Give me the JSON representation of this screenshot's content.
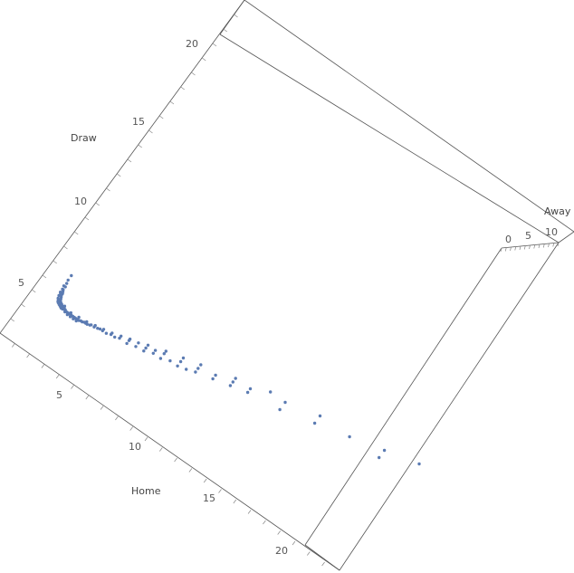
{
  "chart_data": {
    "type": "scatter3d",
    "title": "",
    "axes": {
      "home": {
        "label": "Home",
        "ticks": [
          "5",
          "10",
          "15",
          "20"
        ]
      },
      "draw": {
        "label": "Draw",
        "ticks": [
          "5",
          "10",
          "15",
          "20"
        ]
      },
      "away": {
        "label": "Away",
        "ticks": [
          "0",
          "5",
          "10"
        ]
      }
    },
    "marker_color": "#5b7bb2",
    "box_color": "#555555",
    "points_home_draw": [
      [
        1.3,
        4.9
      ],
      [
        1.3,
        4.6
      ],
      [
        1.35,
        4.4
      ],
      [
        1.4,
        4.2
      ],
      [
        1.4,
        4.0
      ],
      [
        1.45,
        3.9
      ],
      [
        1.5,
        3.8
      ],
      [
        1.5,
        3.7
      ],
      [
        1.55,
        3.6
      ],
      [
        1.6,
        3.5
      ],
      [
        1.6,
        3.45
      ],
      [
        1.65,
        3.4
      ],
      [
        1.7,
        3.35
      ],
      [
        1.75,
        3.3
      ],
      [
        1.8,
        3.3
      ],
      [
        1.85,
        3.25
      ],
      [
        1.9,
        3.2
      ],
      [
        1.95,
        3.2
      ],
      [
        2.0,
        3.2
      ],
      [
        2.05,
        3.2
      ],
      [
        2.1,
        3.15
      ],
      [
        2.15,
        3.15
      ],
      [
        2.2,
        3.1
      ],
      [
        2.3,
        3.1
      ],
      [
        2.4,
        3.1
      ],
      [
        2.5,
        3.1
      ],
      [
        2.6,
        3.1
      ],
      [
        2.7,
        3.1
      ],
      [
        2.8,
        3.1
      ],
      [
        2.9,
        3.1
      ],
      [
        3.0,
        3.1
      ],
      [
        3.1,
        3.1
      ],
      [
        3.2,
        3.15
      ],
      [
        3.3,
        3.15
      ],
      [
        3.4,
        3.2
      ],
      [
        3.5,
        3.2
      ],
      [
        3.6,
        3.2
      ],
      [
        3.75,
        3.25
      ],
      [
        3.8,
        3.3
      ],
      [
        4.0,
        3.3
      ],
      [
        4.2,
        3.35
      ],
      [
        4.33,
        3.4
      ],
      [
        4.5,
        3.4
      ],
      [
        4.75,
        3.4
      ],
      [
        5.0,
        3.5
      ],
      [
        5.25,
        3.5
      ],
      [
        5.5,
        3.6
      ],
      [
        5.5,
        3.75
      ],
      [
        6.0,
        3.6
      ],
      [
        6.0,
        3.8
      ],
      [
        6.5,
        3.75
      ],
      [
        6.5,
        4.0
      ],
      [
        7.0,
        3.8
      ],
      [
        7.0,
        4.0
      ],
      [
        7.5,
        4.0
      ],
      [
        7.5,
        4.2
      ],
      [
        8.0,
        4.0
      ],
      [
        8.0,
        4.33
      ],
      [
        8.5,
        4.2
      ],
      [
        9.0,
        4.2
      ],
      [
        9.0,
        4.5
      ],
      [
        9.5,
        4.33
      ],
      [
        10.0,
        4.5
      ],
      [
        10.0,
        4.75
      ],
      [
        11.0,
        4.75
      ],
      [
        11.0,
        5.0
      ],
      [
        12.0,
        5.0
      ],
      [
        12.0,
        5.25
      ],
      [
        13.0,
        5.5
      ],
      [
        13.0,
        5.25
      ],
      [
        15.0,
        5.5
      ],
      [
        15.0,
        6.0
      ],
      [
        17.0,
        6.0
      ],
      [
        17.0,
        6.5
      ],
      [
        19.0,
        6.5
      ],
      [
        21.0,
        7.0
      ],
      [
        21.0,
        6.5
      ],
      [
        23.0,
        7.5
      ],
      [
        2.0,
        3.3
      ],
      [
        2.5,
        3.2
      ],
      [
        3.0,
        3.25
      ],
      [
        3.5,
        3.3
      ],
      [
        4.0,
        3.4
      ],
      [
        4.5,
        3.5
      ],
      [
        5.0,
        3.6
      ],
      [
        6.0,
        3.9
      ],
      [
        7.0,
        4.2
      ],
      [
        8.0,
        4.5
      ],
      [
        9.0,
        4.75
      ],
      [
        10.0,
        5.0
      ],
      [
        12.0,
        5.5
      ],
      [
        14.0,
        6.0
      ],
      [
        1.55,
        3.3
      ],
      [
        1.6,
        3.25
      ],
      [
        1.7,
        3.2
      ],
      [
        1.8,
        3.15
      ],
      [
        1.9,
        3.1
      ],
      [
        2.0,
        3.1
      ],
      [
        2.2,
        3.05
      ],
      [
        2.4,
        3.0
      ],
      [
        2.6,
        3.0
      ],
      [
        2.8,
        3.0
      ],
      [
        3.0,
        3.0
      ],
      [
        1.45,
        3.45
      ],
      [
        1.5,
        3.4
      ],
      [
        1.4,
        3.6
      ],
      [
        1.4,
        3.75
      ],
      [
        1.35,
        3.8
      ],
      [
        1.35,
        4.0
      ],
      [
        1.3,
        4.2
      ]
    ]
  }
}
